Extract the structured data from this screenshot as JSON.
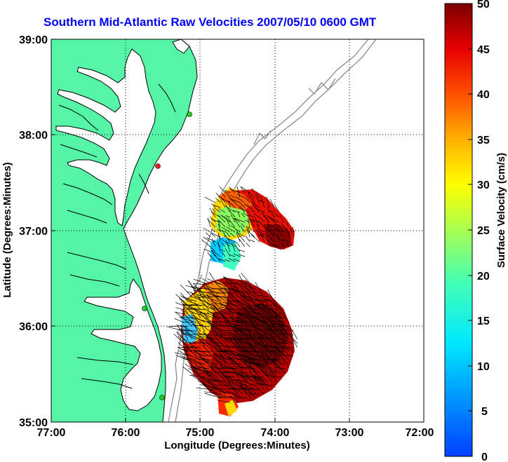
{
  "title": "Southern Mid-Atlantic Raw Velocities 2007/05/10 0600 GMT",
  "axes": {
    "xlabel": "Longitude (Degrees:Minutes)",
    "ylabel": "Latitude (Degrees:Minutes)",
    "x_ticks": [
      "77:00",
      "76:00",
      "75:00",
      "74:00",
      "73:00",
      "72:00"
    ],
    "y_ticks": [
      "39:00",
      "38:00",
      "37:00",
      "36:00",
      "35:00"
    ],
    "x_range_deg_west": [
      77,
      72
    ],
    "y_range_deg_north": [
      35,
      39
    ],
    "grid": "dotted"
  },
  "colorbar": {
    "label": "Surface Velocity (cm/s)",
    "ticks": [
      "50",
      "45",
      "40",
      "35",
      "30",
      "25",
      "20",
      "15",
      "10",
      "5",
      "0"
    ],
    "range": [
      0,
      50
    ],
    "colormap": "jet"
  },
  "colors": {
    "land": "#55f5a8",
    "coastline": "#000000",
    "bathymetry": "#8c8c8c",
    "title": "#0000ff",
    "station": "#22cc22",
    "station_alt": "#dd2222"
  },
  "stations": [
    {
      "lon": -75.1,
      "lat": 38.25,
      "status": "green"
    },
    {
      "lon": -75.45,
      "lat": 37.7,
      "status": "red"
    },
    {
      "lon": -75.7,
      "lat": 36.15,
      "status": "green"
    },
    {
      "lon": -75.45,
      "lat": 35.28,
      "status": "green"
    }
  ]
}
